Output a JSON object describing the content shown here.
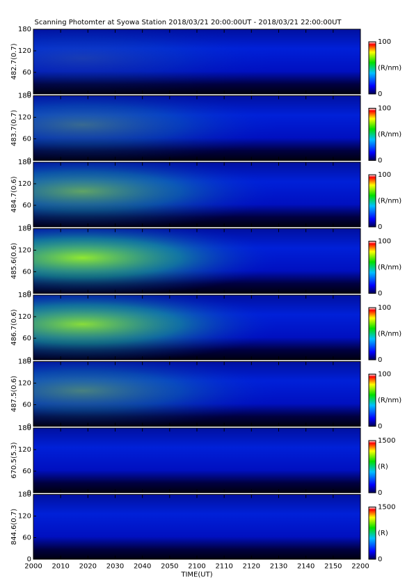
{
  "chart_data": [
    {
      "type": "heatmap",
      "title": "Scanning Photomter at Syowa Station 2018/03/21 20:00:00UT - 2018/03/21 22:00:00UT",
      "ylabel": "482.7(0.7)",
      "ylim": [
        0,
        180
      ],
      "yticks": [
        0,
        60,
        120,
        180
      ],
      "colorbar": {
        "label": "(R/nm)",
        "lim": [
          0,
          100
        ],
        "ticks": [
          0,
          100
        ]
      }
    },
    {
      "type": "heatmap",
      "ylabel": "483.7(0.7)",
      "ylim": [
        0,
        180
      ],
      "yticks": [
        0,
        60,
        120,
        180
      ],
      "colorbar": {
        "label": "(R/nm)",
        "lim": [
          0,
          100
        ],
        "ticks": [
          0,
          100
        ]
      }
    },
    {
      "type": "heatmap",
      "ylabel": "484.7(0.6)",
      "ylim": [
        0,
        180
      ],
      "yticks": [
        0,
        60,
        120,
        180
      ],
      "colorbar": {
        "label": "(R/nm)",
        "lim": [
          0,
          100
        ],
        "ticks": [
          0,
          100
        ]
      }
    },
    {
      "type": "heatmap",
      "ylabel": "485.6(0.6)",
      "ylim": [
        0,
        180
      ],
      "yticks": [
        0,
        60,
        120,
        180
      ],
      "colorbar": {
        "label": "(R/nm)",
        "lim": [
          0,
          100
        ],
        "ticks": [
          0,
          100
        ]
      }
    },
    {
      "type": "heatmap",
      "ylabel": "486.7(0.6)",
      "ylim": [
        0,
        180
      ],
      "yticks": [
        0,
        60,
        120,
        180
      ],
      "colorbar": {
        "label": "(R/nm)",
        "lim": [
          0,
          100
        ],
        "ticks": [
          0,
          100
        ]
      }
    },
    {
      "type": "heatmap",
      "ylabel": "487.5(0.6)",
      "ylim": [
        0,
        180
      ],
      "yticks": [
        0,
        60,
        120,
        180
      ],
      "colorbar": {
        "label": "(R/nm)",
        "lim": [
          0,
          100
        ],
        "ticks": [
          0,
          100
        ]
      }
    },
    {
      "type": "heatmap",
      "ylabel": "670.5(5.3)",
      "ylim": [
        0,
        180
      ],
      "yticks": [
        0,
        60,
        120,
        180
      ],
      "colorbar": {
        "label": "(R)",
        "lim": [
          0,
          1500
        ],
        "ticks": [
          0,
          1500
        ]
      }
    },
    {
      "type": "heatmap",
      "ylabel": "844.6(0.7)",
      "ylim": [
        0,
        180
      ],
      "yticks": [
        0,
        60,
        120,
        180
      ],
      "colorbar": {
        "label": "(R)",
        "lim": [
          0,
          1500
        ],
        "ticks": [
          0,
          1500
        ]
      },
      "xlabel": "TIME(UT)",
      "xlim": [
        0,
        120
      ],
      "xticks": [
        {
          "value": 0,
          "label": "2000"
        },
        {
          "value": 10,
          "label": "2010"
        },
        {
          "value": 20,
          "label": "2020"
        },
        {
          "value": 30,
          "label": "2030"
        },
        {
          "value": 40,
          "label": "2040"
        },
        {
          "value": 50,
          "label": "2050"
        },
        {
          "value": 60,
          "label": "2100"
        },
        {
          "value": 70,
          "label": "2110"
        },
        {
          "value": 80,
          "label": "2120"
        },
        {
          "value": 90,
          "label": "2130"
        },
        {
          "value": 100,
          "label": "2140"
        },
        {
          "value": 110,
          "label": "2150"
        },
        {
          "value": 120,
          "label": "2200"
        }
      ]
    }
  ]
}
